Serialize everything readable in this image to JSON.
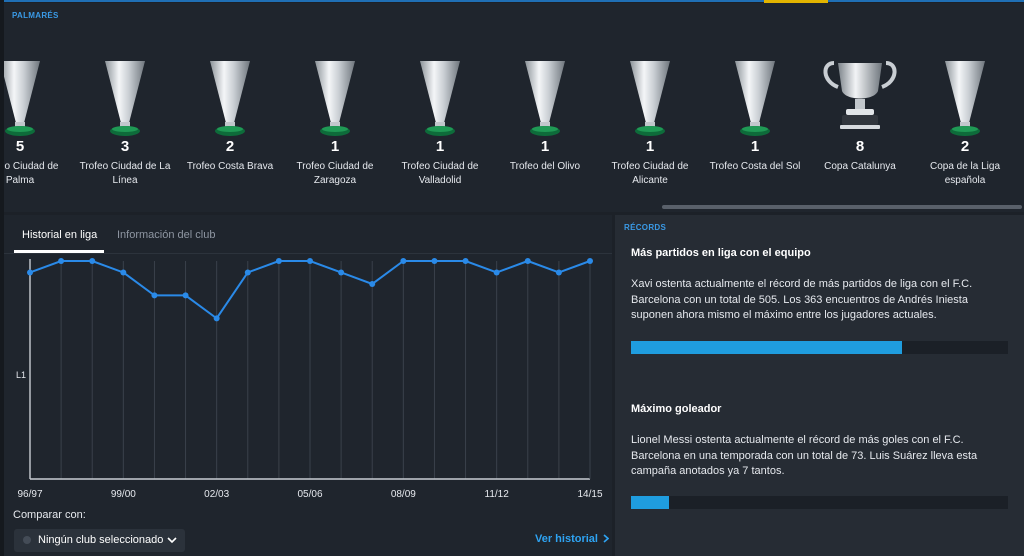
{
  "palmares": {
    "title": "PALMARÉS",
    "trophies": [
      {
        "count": "5",
        "name": "Trofeo Ciudad de Palma",
        "icon": "cone-trophy-icon"
      },
      {
        "count": "3",
        "name": "Trofeo Ciudad de La Línea",
        "icon": "cone-trophy-icon"
      },
      {
        "count": "2",
        "name": "Trofeo Costa Brava",
        "icon": "cone-trophy-icon"
      },
      {
        "count": "1",
        "name": "Trofeo Ciudad de Zaragoza",
        "icon": "cone-trophy-icon"
      },
      {
        "count": "1",
        "name": "Trofeo Ciudad de Valladolid",
        "icon": "cone-trophy-icon"
      },
      {
        "count": "1",
        "name": "Trofeo del Olivo",
        "icon": "cone-trophy-icon"
      },
      {
        "count": "1",
        "name": "Trofeo Ciudad de Alicante",
        "icon": "cone-trophy-icon"
      },
      {
        "count": "1",
        "name": "Trofeo Costa del Sol",
        "icon": "cone-trophy-icon"
      },
      {
        "count": "8",
        "name": "Copa Catalunya",
        "icon": "cup-trophy-icon"
      },
      {
        "count": "2",
        "name": "Copa de la Liga española",
        "icon": "cone-trophy-icon"
      }
    ]
  },
  "tabs": [
    {
      "label": "Historial en liga",
      "active": true
    },
    {
      "label": "Información del club",
      "active": false
    }
  ],
  "chart_data": {
    "type": "line",
    "title": "",
    "xlabel": "",
    "ylabel": "",
    "y_tick_labels": [
      "L1"
    ],
    "x_tick_labels": [
      "96/97",
      "99/00",
      "02/03",
      "05/06",
      "08/09",
      "11/12",
      "14/15"
    ],
    "x": [
      "96/97",
      "97/98",
      "98/99",
      "99/00",
      "00/01",
      "01/02",
      "02/03",
      "03/04",
      "04/05",
      "05/06",
      "06/07",
      "07/08",
      "08/09",
      "09/10",
      "10/11",
      "11/12",
      "12/13",
      "13/14",
      "14/15"
    ],
    "series": [
      {
        "values": [
          2,
          1,
          1,
          2,
          4,
          4,
          6,
          2,
          1,
          1,
          2,
          3,
          1,
          1,
          1,
          2,
          1,
          2,
          1
        ]
      }
    ],
    "ylim": [
      1,
      20
    ],
    "y_inverted": true,
    "grid": true,
    "line_color": "#2a8ae8"
  },
  "compare": {
    "label": "Comparar con:",
    "selected": "Ningún club seleccionado"
  },
  "history_link": "Ver historial",
  "records": {
    "title": "RÉCORDS",
    "items": [
      {
        "title": "Más partidos en liga con el equipo",
        "text": "Xavi ostenta actualmente el récord de más partidos de liga con el F.C. Barcelona con un total de 505. Los 363 encuentros de Andrés Iniesta suponen ahora mismo el máximo entre los jugadores actuales.",
        "progress": 0.72
      },
      {
        "title": "Máximo goleador",
        "text": "Lionel Messi ostenta actualmente el récord de más goles con el F.C. Barcelona en una temporada con un total de 73. Luis Suárez lleva esta campaña anotados ya 7 tantos.",
        "progress": 0.1
      }
    ]
  },
  "colors": {
    "accent": "#3a9ae6",
    "highlight": "#e2b400",
    "bar_fill": "#1f9ddf"
  }
}
